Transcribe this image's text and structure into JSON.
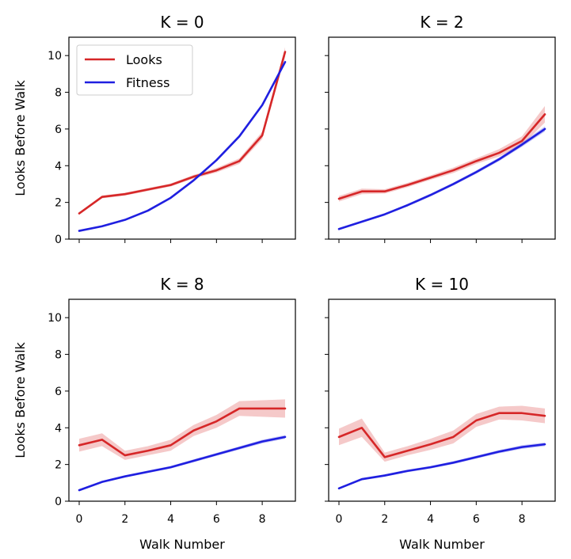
{
  "chart_data": [
    {
      "type": "line",
      "title": "K = 0",
      "xlabel": "",
      "ylabel": "Looks Before Walk",
      "xlim": [
        -0.45,
        9.45
      ],
      "ylim": [
        0,
        11
      ],
      "xticks": [
        0,
        2,
        4,
        6,
        8
      ],
      "yticks": [
        0,
        2,
        4,
        6,
        8,
        10
      ],
      "x_tick_labels_shown": false,
      "y_tick_labels_shown": true,
      "x": [
        0,
        1,
        2,
        3,
        4,
        5,
        6,
        7,
        8,
        9
      ],
      "series": [
        {
          "name": "Looks",
          "color": "#d62728",
          "values": [
            1.4,
            2.3,
            2.45,
            2.7,
            2.95,
            3.4,
            3.75,
            4.25,
            5.65,
            10.2
          ],
          "band": [
            0.05,
            0.08,
            0.08,
            0.08,
            0.08,
            0.1,
            0.12,
            0.15,
            0.2,
            0.25
          ]
        },
        {
          "name": "Fitness",
          "color": "#1f1fe0",
          "values": [
            0.45,
            0.7,
            1.05,
            1.55,
            2.25,
            3.2,
            4.3,
            5.6,
            7.3,
            9.65
          ],
          "band": [
            0.03,
            0.04,
            0.04,
            0.05,
            0.05,
            0.06,
            0.06,
            0.07,
            0.08,
            0.1
          ]
        }
      ],
      "legend": {
        "position": "top-left",
        "entries": [
          "Looks",
          "Fitness"
        ]
      }
    },
    {
      "type": "line",
      "title": "K = 2",
      "xlabel": "",
      "ylabel": "",
      "xlim": [
        -0.45,
        9.45
      ],
      "ylim": [
        0,
        11
      ],
      "xticks": [
        0,
        2,
        4,
        6,
        8
      ],
      "yticks": [
        0,
        2,
        4,
        6,
        8,
        10
      ],
      "x_tick_labels_shown": false,
      "y_tick_labels_shown": false,
      "x": [
        0,
        1,
        2,
        3,
        4,
        5,
        6,
        7,
        8,
        9
      ],
      "series": [
        {
          "name": "Looks",
          "color": "#d62728",
          "values": [
            2.2,
            2.6,
            2.6,
            2.95,
            3.35,
            3.75,
            4.25,
            4.7,
            5.35,
            6.8
          ],
          "band": [
            0.15,
            0.15,
            0.12,
            0.12,
            0.12,
            0.15,
            0.15,
            0.2,
            0.25,
            0.45
          ]
        },
        {
          "name": "Fitness",
          "color": "#1f1fe0",
          "values": [
            0.55,
            0.95,
            1.35,
            1.85,
            2.4,
            3.0,
            3.65,
            4.35,
            5.15,
            6.0
          ],
          "band": [
            0.05,
            0.06,
            0.06,
            0.07,
            0.08,
            0.08,
            0.09,
            0.1,
            0.12,
            0.14
          ]
        }
      ]
    },
    {
      "type": "line",
      "title": "K = 8",
      "xlabel": "Walk Number",
      "ylabel": "Looks Before Walk",
      "xlim": [
        -0.45,
        9.45
      ],
      "ylim": [
        0,
        11
      ],
      "xticks": [
        0,
        2,
        4,
        6,
        8
      ],
      "yticks": [
        0,
        2,
        4,
        6,
        8,
        10
      ],
      "x_tick_labels_shown": true,
      "y_tick_labels_shown": true,
      "x": [
        0,
        1,
        2,
        3,
        4,
        5,
        6,
        7,
        8,
        9
      ],
      "series": [
        {
          "name": "Looks",
          "color": "#d62728",
          "values": [
            3.05,
            3.35,
            2.5,
            2.75,
            3.05,
            3.85,
            4.35,
            5.05,
            5.05,
            5.05
          ],
          "band": [
            0.35,
            0.35,
            0.25,
            0.25,
            0.3,
            0.3,
            0.35,
            0.4,
            0.45,
            0.5
          ]
        },
        {
          "name": "Fitness",
          "color": "#1f1fe0",
          "values": [
            0.6,
            1.05,
            1.35,
            1.6,
            1.85,
            2.2,
            2.55,
            2.9,
            3.25,
            3.5
          ],
          "band": [
            0.05,
            0.06,
            0.06,
            0.07,
            0.07,
            0.08,
            0.08,
            0.09,
            0.1,
            0.1
          ]
        }
      ]
    },
    {
      "type": "line",
      "title": "K = 10",
      "xlabel": "Walk Number",
      "ylabel": "",
      "xlim": [
        -0.45,
        9.45
      ],
      "ylim": [
        0,
        11
      ],
      "xticks": [
        0,
        2,
        4,
        6,
        8
      ],
      "yticks": [
        0,
        2,
        4,
        6,
        8,
        10
      ],
      "x_tick_labels_shown": true,
      "y_tick_labels_shown": false,
      "x": [
        0,
        1,
        2,
        3,
        4,
        5,
        6,
        7,
        8,
        9
      ],
      "series": [
        {
          "name": "Looks",
          "color": "#d62728",
          "values": [
            3.5,
            4.0,
            2.4,
            2.75,
            3.1,
            3.5,
            4.4,
            4.8,
            4.8,
            4.65
          ],
          "band": [
            0.45,
            0.5,
            0.25,
            0.25,
            0.3,
            0.35,
            0.35,
            0.35,
            0.4,
            0.4
          ]
        },
        {
          "name": "Fitness",
          "color": "#1f1fe0",
          "values": [
            0.7,
            1.2,
            1.4,
            1.65,
            1.85,
            2.1,
            2.4,
            2.7,
            2.95,
            3.1
          ],
          "band": [
            0.05,
            0.06,
            0.06,
            0.07,
            0.07,
            0.08,
            0.08,
            0.09,
            0.1,
            0.1
          ]
        }
      ]
    }
  ]
}
